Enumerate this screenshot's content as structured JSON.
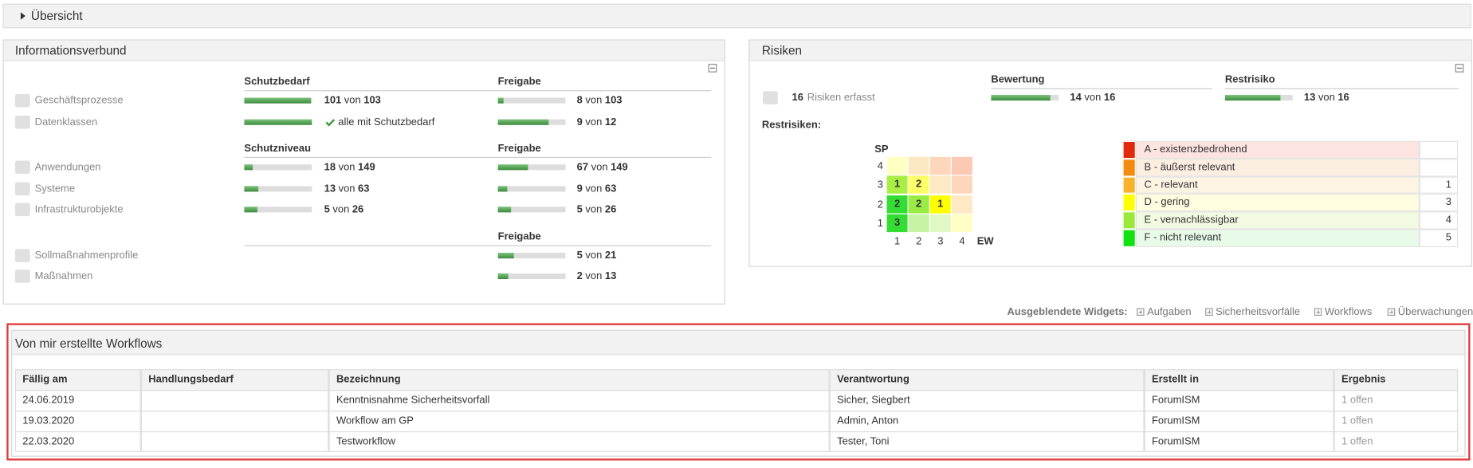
{
  "overview": {
    "title": "Übersicht"
  },
  "info": {
    "title": "Informationsverbund",
    "of_word": "von",
    "sections": [
      {
        "schutz_header": "Schutzbedarf",
        "freigabe_header": "Freigabe",
        "rows": [
          {
            "label": "Geschäftsprozesse",
            "schutz": {
              "count": 101,
              "total": 103
            },
            "freigabe": {
              "count": 8,
              "total": 103
            }
          },
          {
            "label": "Datenklassen",
            "schutz": {
              "text": "alle mit Schutzbedarf"
            },
            "freigabe": {
              "count": 9,
              "total": 12
            }
          }
        ]
      },
      {
        "schutz_header": "Schutzniveau",
        "freigabe_header": "Freigabe",
        "rows": [
          {
            "label": "Anwendungen",
            "schutz": {
              "count": 18,
              "total": 149
            },
            "freigabe": {
              "count": 67,
              "total": 149
            }
          },
          {
            "label": "Systeme",
            "schutz": {
              "count": 13,
              "total": 63
            },
            "freigabe": {
              "count": 9,
              "total": 63
            }
          },
          {
            "label": "Infrastrukturobjekte",
            "schutz": {
              "count": 5,
              "total": 26
            },
            "freigabe": {
              "count": 5,
              "total": 26
            }
          }
        ]
      },
      {
        "freigabe_header": "Freigabe",
        "rows": [
          {
            "label": "Sollmaßnahmenprofile",
            "freigabe": {
              "count": 5,
              "total": 21
            }
          },
          {
            "label": "Maßnahmen",
            "freigabe": {
              "count": 2,
              "total": 13
            }
          }
        ]
      }
    ]
  },
  "risks": {
    "title": "Risiken",
    "count": 16,
    "count_label": "Risiken erfasst",
    "of_word": "von",
    "bewertung": {
      "header": "Bewertung",
      "count": 14,
      "total": 16
    },
    "restrisiko": {
      "header": "Restrisiko",
      "count": 13,
      "total": 16
    },
    "restrisiken_label": "Restrisiken:",
    "matrix": {
      "y_label": "SP",
      "x_label": "EW",
      "x_ticks": [
        1,
        2,
        3,
        4
      ],
      "rows": [
        {
          "tick": 4,
          "cells": [
            null,
            null,
            null,
            null
          ],
          "colors": [
            "#ffffc4",
            "#fde8c4",
            "#fdd6bc",
            "#fccab4"
          ]
        },
        {
          "tick": 3,
          "cells": [
            1,
            2,
            null,
            null
          ],
          "colors": [
            "#a8ee44",
            "#ffff66",
            "#fee9c4",
            "#fdd6bc"
          ]
        },
        {
          "tick": 2,
          "cells": [
            2,
            2,
            1,
            null
          ],
          "colors": [
            "#33dd33",
            "#99ec44",
            "#ffff00",
            "#fee9c4"
          ]
        },
        {
          "tick": 1,
          "cells": [
            3,
            null,
            null,
            null
          ],
          "colors": [
            "#33dd33",
            "#c4f4a4",
            "#e2f8c4",
            "#ffffc4"
          ]
        }
      ]
    },
    "legend": [
      {
        "label": "A - existenzbedrohend",
        "color": "#e2290b",
        "background": "#fde4e0"
      },
      {
        "label": "B - äußerst relevant",
        "color": "#f38b10",
        "background": "#fdeee2"
      },
      {
        "label": "C - relevant",
        "count": 1,
        "color": "#f7b32b",
        "background": "#fef4e4"
      },
      {
        "label": "D - gering",
        "count": 3,
        "color": "#ffff00",
        "background": "#fefde0"
      },
      {
        "label": "E - vernachlässigbar",
        "count": 4,
        "color": "#9be83c",
        "background": "#f2fbe2"
      },
      {
        "label": "F - nicht relevant",
        "count": 5,
        "color": "#11e011",
        "background": "#e8fbe8"
      }
    ]
  },
  "hidden_widgets": {
    "label": "Ausgeblendete Widgets:",
    "items": [
      "Aufgaben",
      "Sicherheitsvorfälle",
      "Workflows",
      "Überwachungen"
    ]
  },
  "workflows": {
    "title": "Von mir erstellte Workflows",
    "columns": [
      "Fällig am",
      "Handlungsbedarf",
      "Bezeichnung",
      "Verantwortung",
      "Erstellt in",
      "Ergebnis"
    ],
    "rows": [
      {
        "due": "24.06.2019",
        "name": "Kenntnisnahme Sicherheitsvorfall",
        "owner": "Sicher, Siegbert",
        "created_in": "ForumISM",
        "result": "1 offen"
      },
      {
        "due": "19.03.2020",
        "name": "Workflow am GP",
        "owner": "Admin, Anton",
        "created_in": "ForumISM",
        "result": "1 offen"
      },
      {
        "due": "22.03.2020",
        "name": "Testworkflow",
        "owner": "Tester, Toni",
        "created_in": "ForumISM",
        "result": "1 offen"
      }
    ]
  }
}
